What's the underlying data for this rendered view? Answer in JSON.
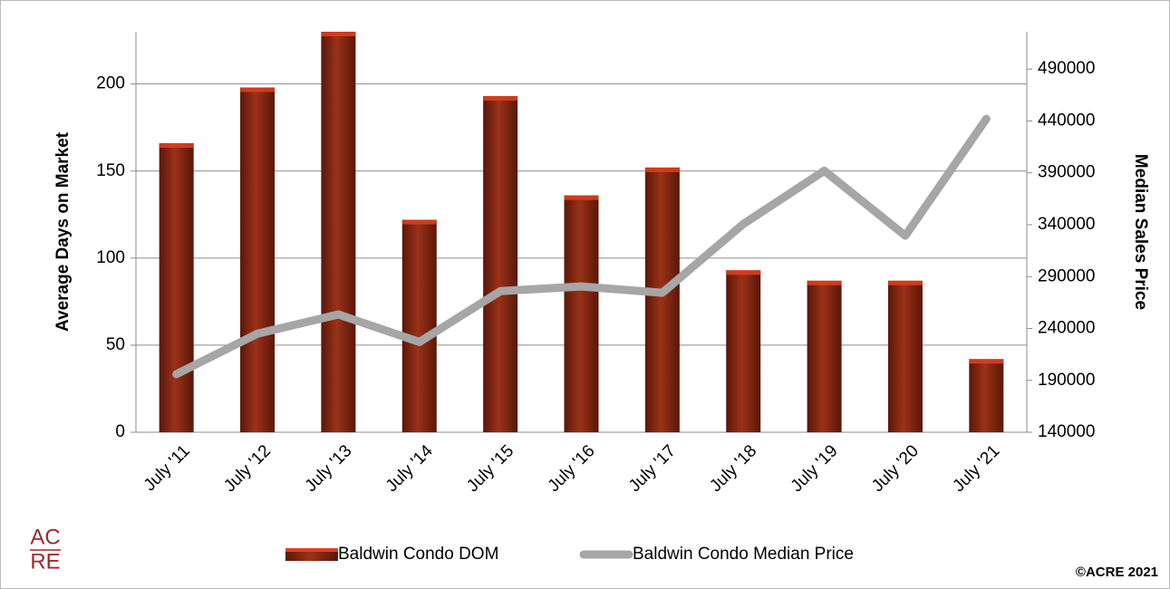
{
  "chart_data": {
    "type": "bar_line",
    "categories": [
      "July '11",
      "July '12",
      "July '13",
      "July '14",
      "July '15",
      "July '16",
      "July '17",
      "July '18",
      "July '19",
      "July '20",
      "July '21"
    ],
    "series": [
      {
        "name": "Baldwin Condo DOM",
        "type": "bar",
        "color": "#8b2a12",
        "values": [
          166,
          198,
          230,
          122,
          193,
          136,
          152,
          93,
          87,
          87,
          42
        ]
      },
      {
        "name": "Baldwin Condo Median Price",
        "type": "line",
        "axis": "y2",
        "color": "#a6a6a6",
        "values": [
          196000,
          235000,
          253500,
          227000,
          276000,
          280500,
          274400,
          340700,
          392000,
          329400,
          442000
        ]
      }
    ],
    "ylabel": "Average Days on Market",
    "y2label": "Median Sales Price",
    "ylim": [
      0,
      230
    ],
    "yticks": [
      0,
      50,
      100,
      150,
      200
    ],
    "y2lim": [
      140000,
      526000
    ],
    "y2ticks": [
      140000,
      190000,
      240000,
      290000,
      340000,
      390000,
      440000,
      490000
    ],
    "grid": true,
    "legend": "bottom",
    "logo": [
      "AC",
      "RE"
    ],
    "copyright": "©ACRE 2021"
  }
}
